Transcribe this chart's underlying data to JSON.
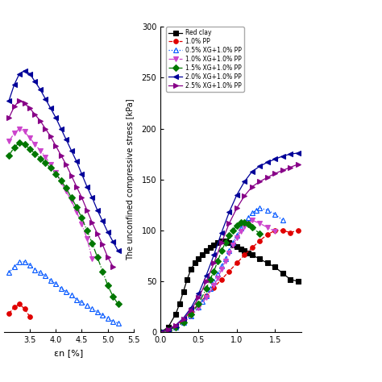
{
  "right_ylabel": "The unconfined compressive stress [kPa]",
  "left_xlabel": "εn [%]",
  "right_xlim": [
    0.0,
    1.85
  ],
  "right_ylim": [
    0,
    300
  ],
  "left_xlim": [
    3.0,
    5.5
  ],
  "left_ylim": [
    70,
    265
  ],
  "series": [
    {
      "label": "Red clay",
      "color": "#000000",
      "linestyle": "-",
      "marker": "s",
      "right_x": [
        0.0,
        0.1,
        0.2,
        0.25,
        0.3,
        0.35,
        0.4,
        0.45,
        0.5,
        0.55,
        0.6,
        0.65,
        0.7,
        0.75,
        0.8,
        0.85,
        0.9,
        0.95,
        1.0,
        1.05,
        1.1,
        1.15,
        1.2,
        1.3,
        1.4,
        1.5,
        1.6,
        1.7,
        1.8
      ],
      "right_y": [
        0,
        5,
        18,
        28,
        40,
        52,
        62,
        68,
        72,
        76,
        80,
        83,
        86,
        88,
        90,
        90,
        88,
        86,
        84,
        82,
        80,
        78,
        76,
        72,
        68,
        64,
        58,
        52,
        50
      ],
      "left_x": [],
      "left_y": []
    },
    {
      "label": "1.0% PP",
      "color": "#e00000",
      "linestyle": "--",
      "marker": "o",
      "right_x": [
        0.0,
        0.1,
        0.2,
        0.3,
        0.4,
        0.5,
        0.6,
        0.7,
        0.8,
        0.9,
        1.0,
        1.1,
        1.2,
        1.3,
        1.4,
        1.5,
        1.6,
        1.7,
        1.8
      ],
      "right_y": [
        0,
        2,
        6,
        12,
        20,
        28,
        36,
        44,
        52,
        60,
        68,
        76,
        83,
        90,
        96,
        100,
        100,
        98,
        100
      ],
      "left_x": [
        3.1,
        3.2,
        3.3,
        3.4,
        3.5
      ],
      "left_y": [
        82,
        86,
        88,
        85,
        80
      ]
    },
    {
      "label": "0.5% XG+1.0% PP",
      "color": "#0055ff",
      "linestyle": ":",
      "marker": "^",
      "marker_open": true,
      "right_x": [
        0.0,
        0.1,
        0.2,
        0.3,
        0.4,
        0.5,
        0.55,
        0.6,
        0.65,
        0.7,
        0.75,
        0.8,
        0.85,
        0.9,
        0.95,
        1.0,
        1.05,
        1.1,
        1.15,
        1.2,
        1.25,
        1.3,
        1.4,
        1.5,
        1.6
      ],
      "right_y": [
        0,
        2,
        5,
        10,
        16,
        25,
        30,
        36,
        43,
        50,
        57,
        65,
        72,
        80,
        88,
        95,
        102,
        108,
        113,
        117,
        120,
        122,
        120,
        116,
        110
      ],
      "left_x": [
        3.1,
        3.2,
        3.3,
        3.4,
        3.5,
        3.6,
        3.7,
        3.8,
        3.9,
        4.0,
        4.1,
        4.2,
        4.3,
        4.4,
        4.5,
        4.6,
        4.7,
        4.8,
        4.9,
        5.0,
        5.1,
        5.2
      ],
      "left_y": [
        108,
        112,
        115,
        115,
        113,
        110,
        108,
        106,
        103,
        101,
        98,
        96,
        94,
        91,
        89,
        87,
        85,
        83,
        81,
        79,
        77,
        76
      ]
    },
    {
      "label": "1.0% XG+1.0% PP",
      "color": "#cc44cc",
      "linestyle": "-.",
      "marker": "v",
      "marker_open": false,
      "right_x": [
        0.0,
        0.1,
        0.2,
        0.3,
        0.4,
        0.5,
        0.6,
        0.7,
        0.75,
        0.8,
        0.85,
        0.9,
        0.95,
        1.0,
        1.05,
        1.1,
        1.15,
        1.2,
        1.3,
        1.4,
        1.5
      ],
      "right_y": [
        0,
        2,
        5,
        10,
        16,
        24,
        34,
        46,
        53,
        62,
        70,
        78,
        86,
        93,
        99,
        104,
        107,
        110,
        107,
        103,
        99
      ],
      "left_x": [
        3.1,
        3.2,
        3.3,
        3.4,
        3.5,
        3.6,
        3.7,
        3.8,
        3.9,
        4.0,
        4.1,
        4.2,
        4.3,
        4.4,
        4.5,
        4.6,
        4.7
      ],
      "left_y": [
        192,
        197,
        200,
        198,
        194,
        190,
        186,
        182,
        177,
        172,
        166,
        160,
        154,
        147,
        139,
        130,
        117
      ]
    },
    {
      "label": "1.5% XG+1.0% PP",
      "color": "#007700",
      "linestyle": "-.",
      "marker": "D",
      "marker_open": false,
      "right_x": [
        0.0,
        0.1,
        0.2,
        0.3,
        0.4,
        0.5,
        0.6,
        0.65,
        0.7,
        0.75,
        0.8,
        0.85,
        0.9,
        0.95,
        1.0,
        1.05,
        1.1,
        1.15,
        1.2,
        1.3
      ],
      "right_y": [
        0,
        2,
        5,
        10,
        18,
        28,
        43,
        52,
        60,
        70,
        80,
        88,
        95,
        100,
        105,
        108,
        108,
        106,
        103,
        97
      ],
      "left_x": [
        3.1,
        3.2,
        3.3,
        3.4,
        3.5,
        3.6,
        3.7,
        3.8,
        3.9,
        4.0,
        4.1,
        4.2,
        4.3,
        4.4,
        4.5,
        4.6,
        4.7,
        4.8,
        4.9,
        5.0,
        5.1,
        5.2
      ],
      "left_y": [
        183,
        188,
        191,
        190,
        187,
        184,
        181,
        178,
        175,
        171,
        167,
        162,
        156,
        150,
        143,
        135,
        127,
        118,
        109,
        100,
        93,
        88
      ]
    },
    {
      "label": "2.0% XG+1.0% PP",
      "color": "#000099",
      "linestyle": "-",
      "marker": "<",
      "marker_open": false,
      "right_x": [
        0.0,
        0.1,
        0.2,
        0.3,
        0.4,
        0.5,
        0.6,
        0.7,
        0.8,
        0.9,
        1.0,
        1.1,
        1.2,
        1.3,
        1.4,
        1.5,
        1.6,
        1.7,
        1.8
      ],
      "right_y": [
        0,
        3,
        7,
        14,
        24,
        38,
        56,
        76,
        98,
        118,
        135,
        148,
        158,
        163,
        167,
        170,
        173,
        175,
        176
      ],
      "left_x": [
        3.1,
        3.2,
        3.3,
        3.4,
        3.5,
        3.6,
        3.7,
        3.8,
        3.9,
        4.0,
        4.1,
        4.2,
        4.3,
        4.4,
        4.5,
        4.6,
        4.7,
        4.8,
        4.9,
        5.0,
        5.1,
        5.2
      ],
      "left_y": [
        218,
        228,
        235,
        237,
        235,
        230,
        225,
        219,
        213,
        207,
        200,
        193,
        186,
        179,
        171,
        163,
        156,
        148,
        141,
        134,
        128,
        122
      ]
    },
    {
      "label": "2.5% XG+1.0% PP",
      "color": "#880088",
      "linestyle": "-",
      "marker": ">",
      "marker_open": false,
      "right_x": [
        0.0,
        0.1,
        0.2,
        0.3,
        0.4,
        0.5,
        0.6,
        0.7,
        0.8,
        0.9,
        1.0,
        1.1,
        1.2,
        1.3,
        1.4,
        1.5,
        1.6,
        1.7,
        1.8
      ],
      "right_y": [
        0,
        3,
        7,
        13,
        22,
        34,
        50,
        68,
        88,
        107,
        122,
        134,
        143,
        148,
        152,
        156,
        159,
        162,
        165
      ],
      "left_x": [
        3.1,
        3.2,
        3.3,
        3.4,
        3.5,
        3.6,
        3.7,
        3.8,
        3.9,
        4.0,
        4.1,
        4.2,
        4.3,
        4.4,
        4.5,
        4.6,
        4.7,
        4.8,
        4.9,
        5.0,
        5.1
      ],
      "left_y": [
        207,
        214,
        218,
        216,
        213,
        209,
        205,
        200,
        195,
        189,
        183,
        177,
        170,
        163,
        156,
        148,
        140,
        133,
        126,
        118,
        112
      ]
    }
  ],
  "background_color": "#ffffff"
}
